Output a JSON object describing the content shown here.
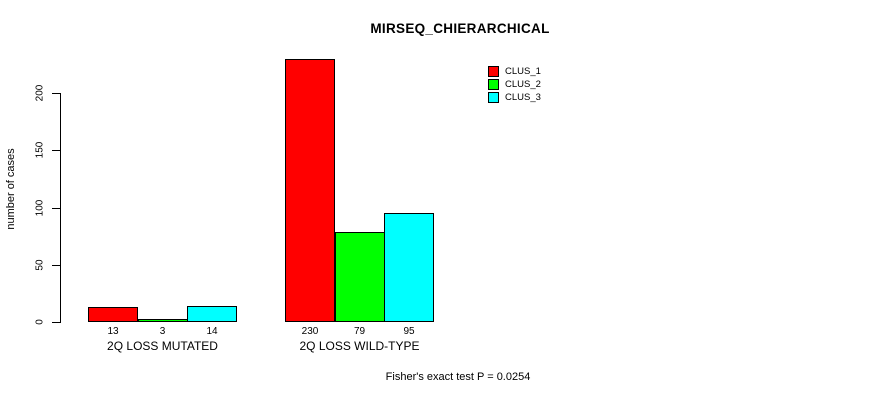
{
  "chart_data": {
    "type": "bar",
    "title": "MIRSEQ_CHIERARCHICAL",
    "ylabel": "number of cases",
    "xlabel": "",
    "categories": [
      "2Q LOSS MUTATED",
      "2Q LOSS WILD-TYPE"
    ],
    "series": [
      {
        "name": "CLUS_1",
        "color": "#ff0000",
        "values": [
          13,
          230
        ]
      },
      {
        "name": "CLUS_2",
        "color": "#00ff00",
        "values": [
          3,
          79
        ]
      },
      {
        "name": "CLUS_3",
        "color": "#00ffff",
        "values": [
          14,
          95
        ]
      }
    ],
    "bar_value_labels_shown": true,
    "yticks": [
      0,
      50,
      100,
      150,
      200
    ],
    "ylim": [
      0,
      232
    ],
    "grid": false,
    "legend_position": "top-right",
    "annotation": "Fisher's exact test P = 0.0254"
  }
}
